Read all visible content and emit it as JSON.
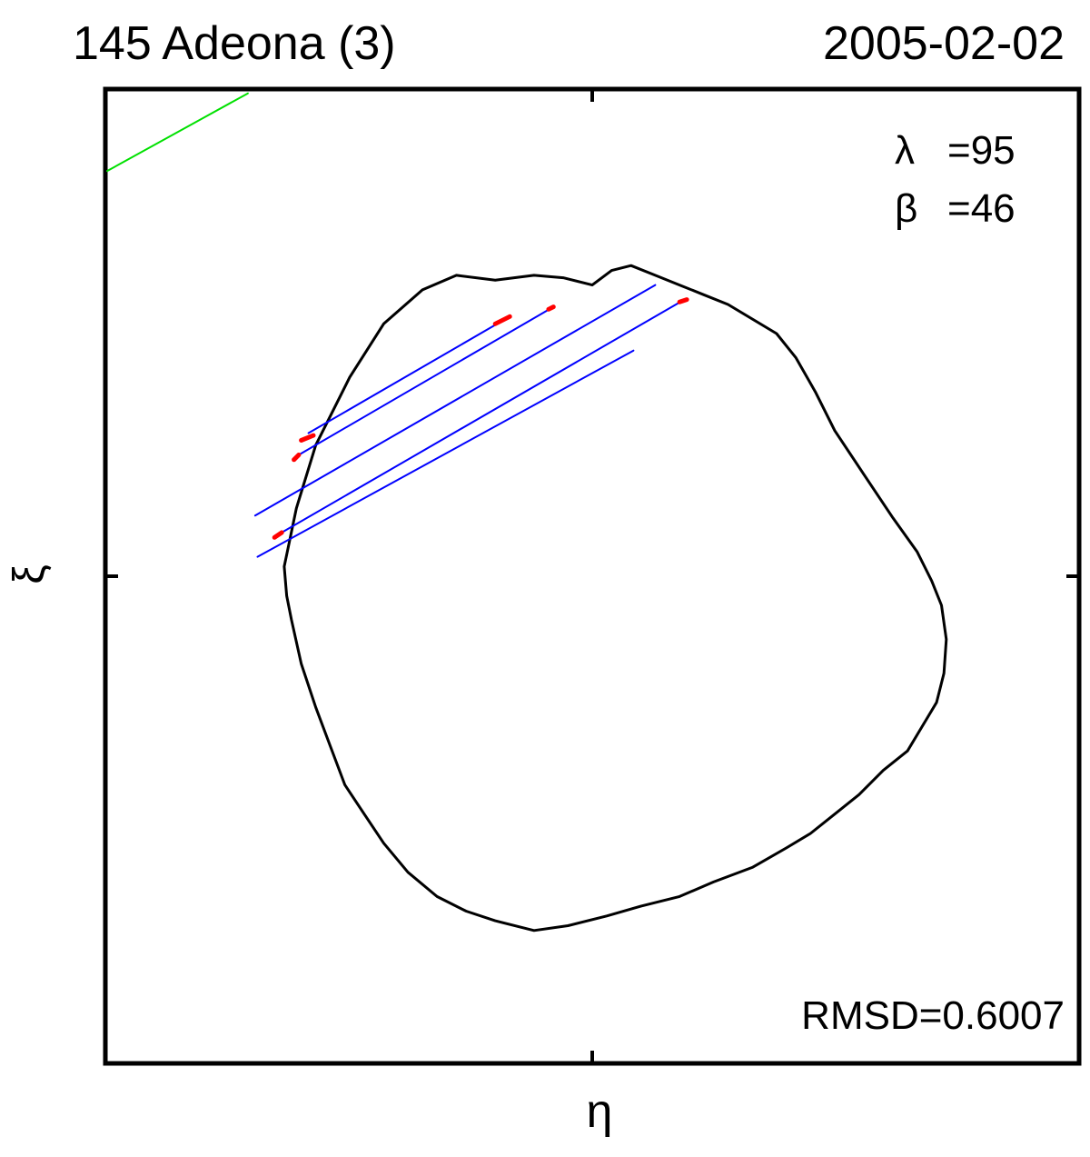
{
  "chart_data": {
    "type": "line",
    "title_left": "145 Adeona  (3)",
    "title_right": "2005-02-02",
    "xlabel": "η",
    "ylabel": "ξ",
    "grid": false,
    "annotations": {
      "lambda_symbol": "λ",
      "lambda_value": "=95",
      "beta_symbol": "β",
      "beta_value": "=46",
      "rmsd": "RMSD=0.6007"
    },
    "colors": {
      "profile": "#000000",
      "chords": "#0000ff",
      "chord_endpoints": "#ff0000",
      "extra_chord": "#00e000"
    },
    "series": [
      {
        "kind": "profile",
        "x": [
          -0.635,
          -0.61,
          -0.57,
          -0.5,
          -0.43,
          -0.35,
          -0.28,
          -0.2,
          -0.12,
          -0.06,
          0.0,
          0.04,
          0.08,
          0.13,
          0.18,
          0.23,
          0.28,
          0.33,
          0.38,
          0.42,
          0.46,
          0.5,
          0.56,
          0.62,
          0.67,
          0.7,
          0.72,
          0.73,
          0.725,
          0.71,
          0.68,
          0.65,
          0.6,
          0.55,
          0.5,
          0.45,
          0.4,
          0.33,
          0.25,
          0.18,
          0.1,
          0.03,
          -0.05,
          -0.12,
          -0.2,
          -0.26,
          -0.32,
          -0.38,
          -0.43,
          -0.47,
          -0.51,
          -0.54,
          -0.57,
          -0.6,
          -0.62,
          -0.63,
          -0.635
        ],
        "y": [
          0.02,
          0.14,
          0.27,
          0.41,
          0.52,
          0.59,
          0.62,
          0.61,
          0.62,
          0.615,
          0.6,
          0.63,
          0.64,
          0.62,
          0.6,
          0.58,
          0.56,
          0.53,
          0.5,
          0.45,
          0.38,
          0.3,
          0.21,
          0.12,
          0.05,
          -0.01,
          -0.06,
          -0.13,
          -0.2,
          -0.26,
          -0.31,
          -0.36,
          -0.4,
          -0.45,
          -0.49,
          -0.53,
          -0.56,
          -0.6,
          -0.63,
          -0.66,
          -0.68,
          -0.7,
          -0.72,
          -0.73,
          -0.71,
          -0.69,
          -0.66,
          -0.61,
          -0.55,
          -0.49,
          -0.43,
          -0.35,
          -0.27,
          -0.18,
          -0.09,
          -0.04,
          0.02
        ]
      },
      {
        "kind": "chord",
        "x": [
          -0.585,
          -0.17
        ],
        "y": [
          0.295,
          0.535
        ]
      },
      {
        "kind": "chord",
        "x": [
          -0.605,
          -0.08
        ],
        "y": [
          0.25,
          0.555
        ]
      },
      {
        "kind": "chord",
        "x": [
          -0.695,
          0.13
        ],
        "y": [
          0.125,
          0.6
        ]
      },
      {
        "kind": "chord",
        "x": [
          -0.64,
          0.19
        ],
        "y": [
          0.09,
          0.57
        ]
      },
      {
        "kind": "chord",
        "x": [
          -0.69,
          0.085
        ],
        "y": [
          0.04,
          0.465
        ]
      },
      {
        "kind": "endpoint",
        "x": [
          -0.6,
          -0.575
        ],
        "y": [
          0.28,
          0.29
        ]
      },
      {
        "kind": "endpoint",
        "x": [
          -0.2,
          -0.17
        ],
        "y": [
          0.52,
          0.535
        ]
      },
      {
        "kind": "endpoint",
        "x": [
          -0.615,
          -0.605
        ],
        "y": [
          0.24,
          0.25
        ]
      },
      {
        "kind": "endpoint",
        "x": [
          -0.09,
          -0.08
        ],
        "y": [
          0.55,
          0.555
        ]
      },
      {
        "kind": "endpoint",
        "x": [
          0.18,
          0.195
        ],
        "y": [
          0.565,
          0.57
        ]
      },
      {
        "kind": "endpoint",
        "x": [
          -0.655,
          -0.64
        ],
        "y": [
          0.08,
          0.09
        ]
      },
      {
        "kind": "chord-extra",
        "x": [
          -1.0,
          -0.71
        ],
        "y": [
          0.835,
          0.995
        ]
      }
    ],
    "xlim": [
      -1.0,
      1.0
    ],
    "ylim": [
      -1.0,
      1.0
    ]
  }
}
